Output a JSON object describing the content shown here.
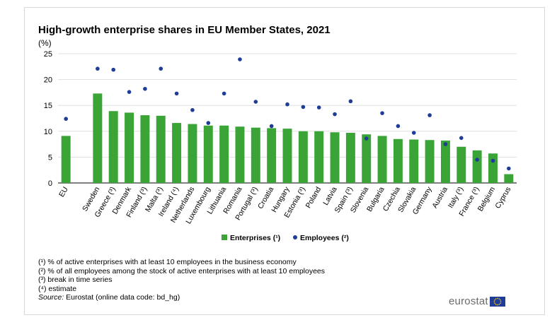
{
  "chart_data": {
    "type": "bar",
    "title": "High-growth enterprise shares in EU Member States, 2021",
    "unit_label": "(%)",
    "categories": [
      "EU",
      "Sweden",
      "Greece (³)",
      "Denmark",
      "Finland (³)",
      "Malta (³)",
      "Ireland (⁴)",
      "Netherlands",
      "Luxembourg",
      "Lithuania",
      "Romania",
      "Portugal (³)",
      "Croatia",
      "Hungary",
      "Estonia (³)",
      "Poland",
      "Latvia",
      "Spain (³)",
      "Slovenia",
      "Bulgaria",
      "Czechia",
      "Slovakia",
      "Germany",
      "Austria",
      "Italy (³)",
      "France (³)",
      "Belgium",
      "Cyprus"
    ],
    "category_gap_after_first": true,
    "series": [
      {
        "name": "Enterprises (¹)",
        "kind": "bar",
        "color": "#3aa536",
        "values": [
          9.1,
          17.3,
          13.9,
          13.6,
          13.1,
          13.0,
          11.6,
          11.4,
          11.1,
          11.1,
          10.9,
          10.7,
          10.6,
          10.5,
          10.0,
          10.0,
          9.8,
          9.7,
          9.4,
          9.1,
          8.5,
          8.4,
          8.3,
          8.2,
          7.0,
          6.3,
          5.7,
          1.7
        ]
      },
      {
        "name": "Employees (²)",
        "kind": "dot",
        "color": "#1f3d96",
        "values": [
          12.4,
          22.1,
          21.9,
          17.6,
          18.2,
          22.1,
          17.3,
          14.1,
          11.6,
          17.3,
          23.9,
          15.7,
          11.0,
          15.2,
          14.7,
          14.6,
          13.3,
          15.8,
          8.6,
          13.5,
          11.0,
          9.7,
          13.1,
          7.5,
          8.7,
          4.5,
          4.3,
          2.8
        ]
      }
    ],
    "ylim": [
      0,
      25
    ],
    "yticks": [
      0,
      5,
      10,
      15,
      20,
      25
    ],
    "grid": true,
    "legend_position": "bottom-center",
    "xlabel": "",
    "ylabel": ""
  },
  "notes": [
    "(¹) % of active enterprises with at least 10 employees in the business economy",
    "(²) % of all employees among the stock of active enterprises with at least 10 employees",
    "(³) break in time series",
    "(⁴) estimate"
  ],
  "source": {
    "label": "Source:",
    "text": " Eurostat (online data code: bd_hg)"
  },
  "logo": {
    "text": "eurostat",
    "flag_color": "#1f3d96",
    "star_color": "#f7d117"
  }
}
